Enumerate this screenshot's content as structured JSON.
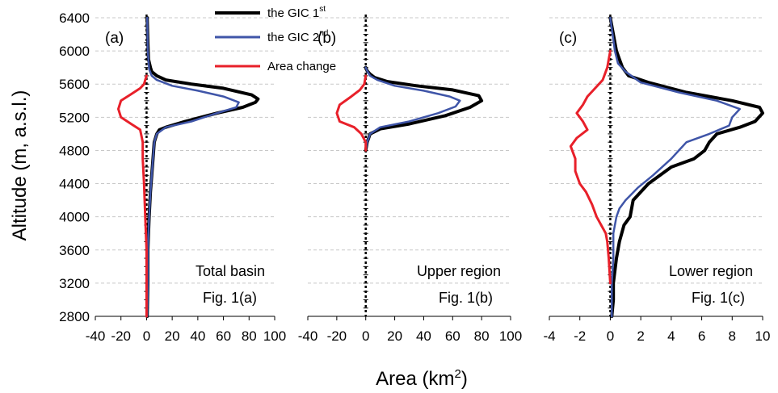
{
  "figure": {
    "ylabel": "Altitude (m, a.s.l.)",
    "xlabel": "Area (km",
    "xlabel_sup": "2",
    "xlabel_close": ")",
    "y_ticks": [
      "6400",
      "6000",
      "5600",
      "5200",
      "4800",
      "4400",
      "4000",
      "3600",
      "3200",
      "2800"
    ]
  },
  "legend": {
    "entries": [
      {
        "label": "the GIC 1",
        "sup": "st",
        "color": "#000000"
      },
      {
        "label": "the GIC 2",
        "sup": "nd",
        "color": "#3f55a8"
      },
      {
        "label": "Area change",
        "sup": "",
        "color": "#e8202a"
      }
    ]
  },
  "colors": {
    "gic1": "#000000",
    "gic2": "#3f55a8",
    "change": "#e8202a"
  },
  "chart_data": [
    {
      "type": "line",
      "panel": "(a)",
      "region_label": "Total basin",
      "figure_label": "Fig. 1(a)",
      "xlabel": "Area (km2)",
      "ylabel": "Altitude (m, a.s.l.)",
      "xlim": [
        -40,
        100
      ],
      "ylim": [
        2800,
        6400
      ],
      "x_ticks": [
        -40,
        -20,
        0,
        20,
        40,
        60,
        80,
        100
      ],
      "x_tick_labels": [
        "-40",
        "-20",
        "0",
        "20",
        "40",
        "60",
        "80",
        "100"
      ],
      "series": [
        {
          "name": "the GIC 1st",
          "x": [
            0.5,
            1,
            1,
            2,
            3,
            4,
            5,
            6,
            8,
            10,
            15,
            30,
            55,
            75,
            85,
            87,
            82,
            60,
            35,
            15,
            8,
            4,
            3,
            1.5,
            1,
            0.5
          ],
          "y": [
            2800,
            3200,
            3600,
            4000,
            4300,
            4500,
            4700,
            4900,
            5000,
            5050,
            5080,
            5150,
            5250,
            5320,
            5380,
            5420,
            5470,
            5550,
            5600,
            5650,
            5700,
            5750,
            5800,
            5900,
            6100,
            6400
          ]
        },
        {
          "name": "the GIC 2nd",
          "x": [
            0.5,
            1,
            1,
            2,
            3,
            4,
            5,
            6,
            8,
            15,
            35,
            55,
            70,
            72,
            60,
            40,
            20,
            8,
            4,
            2,
            1,
            0.5
          ],
          "y": [
            2800,
            3200,
            3600,
            4000,
            4300,
            4500,
            4700,
            4900,
            5000,
            5080,
            5150,
            5250,
            5320,
            5380,
            5450,
            5520,
            5580,
            5650,
            5700,
            5780,
            6000,
            6400
          ]
        },
        {
          "name": "Area change",
          "x": [
            0,
            0,
            -1,
            -2,
            -3,
            -3,
            -5,
            -12,
            -20,
            -22,
            -20,
            -12,
            -5,
            -2,
            -1,
            0
          ],
          "y": [
            2800,
            3600,
            4000,
            4400,
            4700,
            4900,
            5050,
            5120,
            5200,
            5300,
            5400,
            5480,
            5550,
            5600,
            5650,
            5700
          ]
        }
      ]
    },
    {
      "type": "line",
      "panel": "(b)",
      "region_label": "Upper region",
      "figure_label": "Fig. 1(b)",
      "xlabel": "Area (km2)",
      "xlim": [
        -40,
        100
      ],
      "ylim": [
        2800,
        6400
      ],
      "x_ticks": [
        -40,
        -20,
        0,
        20,
        40,
        60,
        80,
        100
      ],
      "x_tick_labels": [
        "-40",
        "-20",
        "0",
        "20",
        "40",
        "60",
        "80",
        "100"
      ],
      "series": [
        {
          "name": "the GIC 1st",
          "x": [
            0,
            1,
            3,
            10,
            30,
            55,
            72,
            80,
            78,
            60,
            35,
            15,
            6,
            3,
            1,
            0
          ],
          "y": [
            4800,
            4900,
            5000,
            5060,
            5120,
            5220,
            5320,
            5400,
            5460,
            5530,
            5580,
            5630,
            5680,
            5720,
            5760,
            5800
          ]
        },
        {
          "name": "the GIC 2nd",
          "x": [
            0,
            1,
            3,
            10,
            30,
            50,
            62,
            65,
            58,
            40,
            20,
            8,
            3,
            1,
            0
          ],
          "y": [
            4800,
            4900,
            5000,
            5080,
            5150,
            5250,
            5330,
            5400,
            5450,
            5520,
            5580,
            5650,
            5700,
            5760,
            5800
          ]
        },
        {
          "name": "Area change",
          "x": [
            0,
            0,
            -3,
            -8,
            -18,
            -20,
            -18,
            -10,
            -4,
            -1,
            0
          ],
          "y": [
            4800,
            4900,
            5000,
            5080,
            5150,
            5250,
            5350,
            5450,
            5530,
            5600,
            5700
          ]
        }
      ]
    },
    {
      "type": "line",
      "panel": "(c)",
      "region_label": "Lower region",
      "figure_label": "Fig. 1(c)",
      "xlabel": "Area (km2)",
      "xlim": [
        -4,
        10
      ],
      "ylim": [
        2800,
        6400
      ],
      "x_ticks": [
        -4,
        -2,
        0,
        2,
        4,
        6,
        8,
        10
      ],
      "x_tick_labels": [
        "-4",
        "-2",
        "0",
        "2",
        "4",
        "6",
        "8",
        "10"
      ],
      "series": [
        {
          "name": "the GIC 1st",
          "x": [
            0.1,
            0.2,
            0.2,
            0.4,
            0.6,
            0.9,
            1.3,
            1.5,
            2.5,
            4,
            5.5,
            6.2,
            6.5,
            7,
            8.5,
            9.5,
            10,
            9.8,
            8,
            5,
            2.5,
            1.2,
            0.8,
            0.6,
            0.4,
            0.2,
            0
          ],
          "y": [
            2800,
            3000,
            3200,
            3500,
            3700,
            3900,
            4000,
            4200,
            4400,
            4600,
            4700,
            4800,
            4900,
            5000,
            5080,
            5150,
            5250,
            5320,
            5400,
            5500,
            5620,
            5700,
            5800,
            5900,
            6000,
            6200,
            6400
          ]
        },
        {
          "name": "the GIC 2nd",
          "x": [
            0.1,
            0.1,
            0.2,
            0.2,
            0.4,
            0.6,
            1,
            1.8,
            2.8,
            4,
            4.5,
            5,
            6.5,
            7.8,
            8,
            8.5,
            7,
            4.5,
            2,
            1,
            0.5,
            0.3,
            0
          ],
          "y": [
            2800,
            3200,
            3500,
            3800,
            4000,
            4100,
            4200,
            4350,
            4500,
            4700,
            4800,
            4900,
            5000,
            5100,
            5200,
            5300,
            5400,
            5500,
            5620,
            5750,
            5850,
            6000,
            6400
          ]
        },
        {
          "name": "Area change",
          "x": [
            0,
            -0.1,
            -0.2,
            -0.3,
            -0.6,
            -0.9,
            -1.2,
            -1.6,
            -2,
            -2.3,
            -2.3,
            -2.6,
            -2.2,
            -1.5,
            -1.8,
            -2.2,
            -1.8,
            -1.5,
            -1,
            -0.5,
            -0.2,
            0
          ],
          "y": [
            3200,
            3500,
            3700,
            3800,
            3900,
            4000,
            4150,
            4300,
            4400,
            4550,
            4700,
            4850,
            4950,
            5050,
            5150,
            5250,
            5350,
            5450,
            5550,
            5650,
            5800,
            6000
          ]
        }
      ]
    }
  ]
}
